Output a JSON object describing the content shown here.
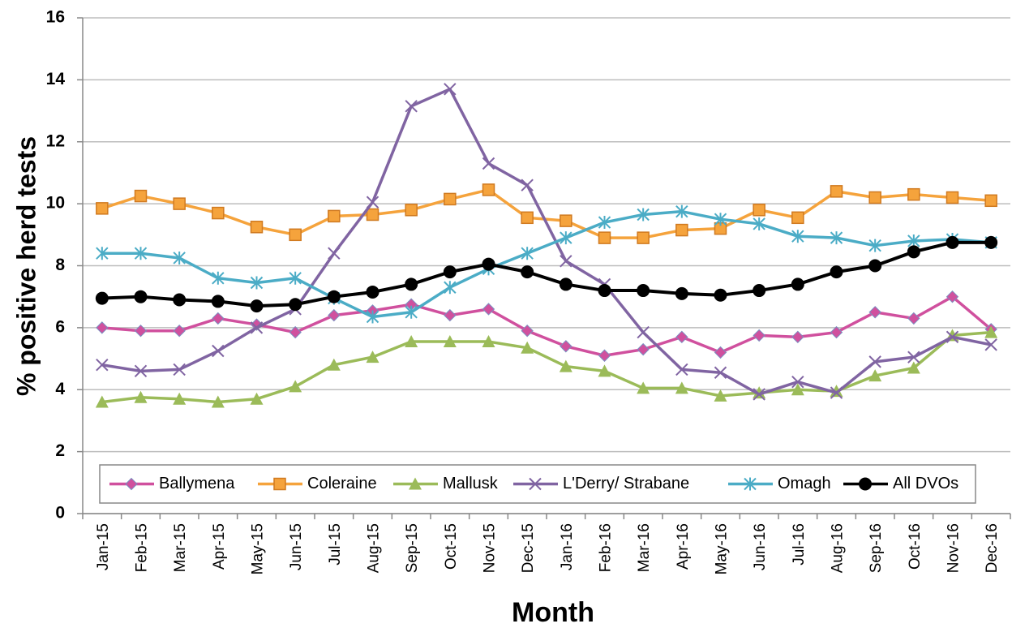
{
  "chart_data": {
    "type": "line",
    "x_label": "Month",
    "y_label": "% positive herd tests",
    "categories": [
      "Jan-15",
      "Feb-15",
      "Mar-15",
      "Apr-15",
      "May-15",
      "Jun-15",
      "Jul-15",
      "Aug-15",
      "Sep-15",
      "Oct-15",
      "Nov-15",
      "Dec-15",
      "Jan-16",
      "Feb-16",
      "Mar-16",
      "Apr-16",
      "May-16",
      "Jun-16",
      "Jul-16",
      "Aug-16",
      "Sep-16",
      "Oct-16",
      "Nov-16",
      "Dec-16"
    ],
    "ylim": [
      0,
      16
    ],
    "yticks": [
      0,
      2,
      4,
      6,
      8,
      10,
      12,
      14,
      16
    ],
    "grid": true,
    "legend": "bottom",
    "series": [
      {
        "name": "Ballymena",
        "color": "#d0509e",
        "marker": "diamond",
        "values": [
          6.0,
          5.9,
          5.9,
          6.3,
          6.1,
          5.85,
          6.4,
          6.55,
          6.75,
          6.4,
          6.6,
          5.9,
          5.4,
          5.1,
          5.3,
          5.7,
          5.2,
          5.75,
          5.7,
          5.85,
          6.5,
          6.3,
          7.0,
          5.95
        ]
      },
      {
        "name": "Coleraine",
        "color": "#f5a33c",
        "marker": "square",
        "values": [
          9.85,
          10.25,
          10.0,
          9.7,
          9.25,
          9.0,
          9.6,
          9.65,
          9.8,
          10.15,
          10.45,
          9.55,
          9.45,
          8.9,
          8.9,
          9.15,
          9.2,
          9.8,
          9.55,
          10.4,
          10.2,
          10.3,
          10.2,
          10.1
        ]
      },
      {
        "name": "Mallusk",
        "color": "#9bbb59",
        "marker": "triangle",
        "values": [
          3.6,
          3.75,
          3.7,
          3.6,
          3.7,
          4.1,
          4.8,
          5.05,
          5.55,
          5.55,
          5.55,
          5.35,
          4.75,
          4.6,
          4.05,
          4.05,
          3.8,
          3.9,
          4.0,
          3.95,
          4.45,
          4.7,
          5.75,
          5.85
        ]
      },
      {
        "name": "L'Derry/ Strabane",
        "color": "#8064a2",
        "marker": "x",
        "values": [
          4.8,
          4.6,
          4.65,
          5.25,
          6.0,
          6.6,
          8.4,
          10.05,
          13.15,
          13.7,
          11.3,
          10.6,
          8.15,
          7.4,
          5.85,
          4.65,
          4.55,
          3.85,
          4.25,
          3.9,
          4.9,
          5.05,
          5.7,
          5.45
        ]
      },
      {
        "name": "Omagh",
        "color": "#4bacc6",
        "marker": "star",
        "values": [
          8.4,
          8.4,
          8.25,
          7.6,
          7.45,
          7.6,
          6.95,
          6.35,
          6.5,
          7.3,
          7.9,
          8.4,
          8.9,
          9.4,
          9.65,
          9.75,
          9.5,
          9.35,
          8.95,
          8.9,
          8.65,
          8.8,
          8.85,
          8.75
        ]
      },
      {
        "name": "All DVOs",
        "color": "#000000",
        "marker": "circle",
        "values": [
          6.95,
          7.0,
          6.9,
          6.85,
          6.7,
          6.75,
          7.0,
          7.15,
          7.4,
          7.8,
          8.05,
          7.8,
          7.4,
          7.2,
          7.2,
          7.1,
          7.05,
          7.2,
          7.4,
          7.8,
          8.0,
          8.45,
          8.75,
          8.75
        ]
      }
    ]
  }
}
